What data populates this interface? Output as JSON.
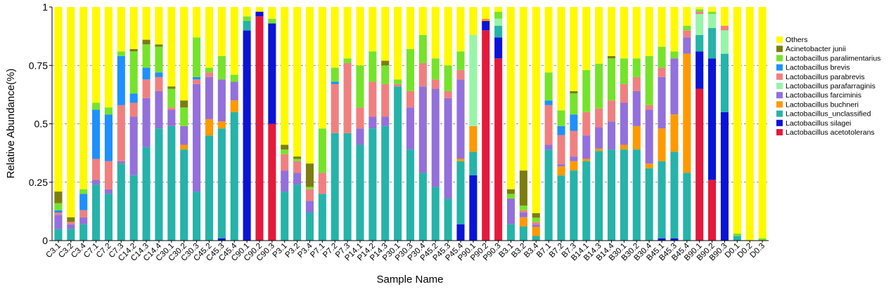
{
  "chart_data": {
    "type": "bar",
    "stacked": true,
    "xlabel": "Sample Name",
    "ylabel": "Relative Abundance(%)",
    "ylim": [
      0,
      1
    ],
    "yticks": [
      "0",
      "0.25",
      "0.5",
      "0.75",
      "1"
    ],
    "grid": "horizontal dashed",
    "legend_position": "right",
    "categories": [
      "C3.1",
      "C3.2",
      "C3.4",
      "C7.1",
      "C7.2",
      "C7.3",
      "C14.2",
      "C14.3",
      "C14.4",
      "C30.1",
      "C30.2",
      "C30.3",
      "C45.2",
      "C45.3",
      "C45.4",
      "C90.1",
      "C90.2",
      "C90.3",
      "P3.1",
      "P3.2",
      "P3.4",
      "P7.1",
      "P7.2",
      "P7.3",
      "P14.1",
      "P14.2",
      "P14.3",
      "P30.1",
      "P30.3",
      "P30.4",
      "P45.2",
      "P45.3",
      "P45.4",
      "P90.1",
      "P90.2",
      "P90.3",
      "B3.1",
      "B3.2",
      "B3.4",
      "B7.1",
      "B7.2",
      "B7.3",
      "B14.1",
      "B14.3",
      "B14.4",
      "B30.1",
      "B30.2",
      "B30.4",
      "B45.1",
      "B45.3",
      "B45.4",
      "B90.1",
      "B90.2",
      "B90.3",
      "D0.1",
      "D0.2",
      "D0.3"
    ],
    "series": [
      {
        "name": "Lactobacillus acetotolerans",
        "color": "#e31a3c",
        "values": [
          0,
          0,
          0,
          0,
          0,
          0,
          0,
          0,
          0,
          0,
          0,
          0,
          0,
          0,
          0,
          0,
          0.96,
          0.5,
          0,
          0,
          0,
          0,
          0,
          0,
          0,
          0,
          0,
          0,
          0,
          0,
          0,
          0,
          0,
          0,
          0.9,
          0.78,
          0,
          0,
          0,
          0,
          0,
          0,
          0,
          0,
          0,
          0,
          0,
          0,
          0,
          0,
          0,
          0.65,
          0.26,
          0,
          0,
          0,
          0
        ]
      },
      {
        "name": "Lactobacillus silagei",
        "color": "#0a14d6",
        "values": [
          0,
          0,
          0,
          0,
          0,
          0,
          0,
          0,
          0,
          0,
          0,
          0,
          0,
          0.01,
          0,
          0.9,
          0.02,
          0.43,
          0,
          0,
          0,
          0,
          0,
          0,
          0,
          0,
          0,
          0,
          0,
          0,
          0,
          0,
          0.07,
          0.28,
          0.04,
          0.09,
          0,
          0,
          0,
          0,
          0,
          0,
          0,
          0,
          0,
          0,
          0,
          0,
          0.01,
          0.01,
          0,
          0.16,
          0.52,
          0.55,
          0,
          0,
          0
        ]
      },
      {
        "name": "Lactobacillus_unclassified",
        "color": "#26b3a9",
        "values": [
          0.05,
          0.05,
          0.07,
          0.24,
          0.2,
          0.33,
          0.28,
          0.4,
          0.48,
          0.49,
          0.39,
          0.21,
          0.45,
          0.47,
          0.55,
          0.04,
          0,
          0,
          0.21,
          0.24,
          0.12,
          0.2,
          0.46,
          0.46,
          0.41,
          0.48,
          0.49,
          0.66,
          0.39,
          0.29,
          0.23,
          0.18,
          0.27,
          0.1,
          0,
          0.05,
          0.07,
          0.06,
          0.02,
          0.39,
          0.29,
          0.3,
          0.34,
          0.38,
          0.39,
          0.39,
          0.39,
          0.31,
          0.33,
          0.37,
          0.29,
          0.07,
          0.13,
          0.25,
          0.02,
          0,
          0
        ]
      },
      {
        "name": "Lactobacillus buchneri",
        "color": "#ff9900",
        "values": [
          0,
          0,
          0,
          0,
          0,
          0,
          0,
          0,
          0,
          0,
          0.02,
          0,
          0.07,
          0.03,
          0.05,
          0,
          0,
          0,
          0,
          0,
          0,
          0,
          0,
          0,
          0,
          0,
          0,
          0,
          0,
          0,
          0,
          0,
          0.01,
          0.11,
          0.01,
          0,
          0,
          0.04,
          0.04,
          0,
          0.04,
          0.04,
          0.01,
          0.01,
          0,
          0.02,
          0.1,
          0.02,
          0.14,
          0.16,
          0.51,
          0,
          0,
          0,
          0,
          0,
          0
        ]
      },
      {
        "name": "Lactobacillus farciminis",
        "color": "#9370db",
        "values": [
          0.06,
          0.02,
          0.03,
          0.02,
          0.02,
          0.01,
          0.25,
          0.21,
          0.16,
          0.07,
          0.08,
          0.46,
          0.18,
          0.18,
          0.08,
          0,
          0,
          0,
          0.09,
          0.05,
          0.05,
          0,
          0,
          0,
          0.07,
          0.05,
          0.04,
          0,
          0.18,
          0.37,
          0.42,
          0.43,
          0.34,
          0,
          0,
          0,
          0.11,
          0.02,
          0.01,
          0.02,
          0.01,
          0.02,
          0.1,
          0.09,
          0.12,
          0.18,
          0.15,
          0.23,
          0.22,
          0.24,
          0.07,
          0,
          0,
          0,
          0,
          0,
          0
        ]
      },
      {
        "name": "Lactobacillus parafarraginis",
        "color": "#98f5a8",
        "values": [
          0,
          0,
          0,
          0,
          0,
          0,
          0,
          0,
          0,
          0,
          0,
          0,
          0,
          0,
          0,
          0,
          0,
          0,
          0,
          0,
          0,
          0,
          0,
          0,
          0,
          0,
          0,
          0,
          0,
          0,
          0,
          0,
          0,
          0.39,
          0,
          0.03,
          0,
          0,
          0,
          0,
          0,
          0,
          0,
          0,
          0,
          0,
          0,
          0,
          0,
          0,
          0,
          0.09,
          0.06,
          0.1,
          0,
          0,
          0
        ]
      },
      {
        "name": "Lactobacillus parabrevis",
        "color": "#f08080",
        "values": [
          0.01,
          0.01,
          0.03,
          0.09,
          0.12,
          0.24,
          0.06,
          0.08,
          0.06,
          0.01,
          0,
          0.02,
          0.02,
          0,
          0,
          0,
          0,
          0,
          0.07,
          0.05,
          0.05,
          0.09,
          0.21,
          0.3,
          0.09,
          0.15,
          0.14,
          0.01,
          0.07,
          0.1,
          0.04,
          0.03,
          0.04,
          0,
          0,
          0,
          0,
          0.01,
          0.01,
          0.17,
          0.13,
          0.11,
          0.1,
          0.08,
          0.09,
          0.08,
          0.06,
          0.02,
          0.04,
          0,
          0.03,
          0.01,
          0,
          0.02,
          0,
          0,
          0
        ]
      },
      {
        "name": "Lactobacillus brevis",
        "color": "#1e90ff",
        "values": [
          0.01,
          0,
          0.07,
          0.21,
          0.2,
          0.21,
          0.04,
          0.05,
          0.02,
          0,
          0,
          0.01,
          0,
          0,
          0,
          0,
          0,
          0,
          0,
          0,
          0,
          0,
          0.01,
          0,
          0,
          0,
          0,
          0,
          0,
          0,
          0,
          0,
          0,
          0,
          0,
          0,
          0,
          0,
          0,
          0.02,
          0.04,
          0.07,
          0,
          0,
          0,
          0,
          0,
          0,
          0,
          0,
          0,
          0,
          0,
          0,
          0,
          0,
          0
        ]
      },
      {
        "name": "Lactobacillus paralimentarius",
        "color": "#76e32b",
        "values": [
          0.03,
          0,
          0.02,
          0.03,
          0.03,
          0.02,
          0.18,
          0.1,
          0.11,
          0.08,
          0.08,
          0.17,
          0.02,
          0.1,
          0.03,
          0.02,
          0,
          0.02,
          0.02,
          0.01,
          0.01,
          0.19,
          0.06,
          0.02,
          0.18,
          0.13,
          0.08,
          0.02,
          0.18,
          0.12,
          0.09,
          0.11,
          0.08,
          0,
          0,
          0.03,
          0.02,
          0.02,
          0.02,
          0.12,
          0.07,
          0.09,
          0.18,
          0.19,
          0.18,
          0.11,
          0.08,
          0.21,
          0.09,
          0.03,
          0.02,
          0.01,
          0.01,
          0,
          0.01,
          0,
          0.01
        ]
      },
      {
        "name": "Acinetobacter junii",
        "color": "#7d7d0f",
        "values": [
          0.05,
          0.02,
          0,
          0,
          0,
          0,
          0.01,
          0.02,
          0.01,
          0.01,
          0.03,
          0,
          0,
          0,
          0,
          0,
          0,
          0,
          0.02,
          0.01,
          0.1,
          0,
          0,
          0,
          0,
          0,
          0.02,
          0,
          0,
          0,
          0,
          0,
          0,
          0,
          0,
          0,
          0.02,
          0.15,
          0.02,
          0,
          0,
          0.01,
          0,
          0,
          0.01,
          0,
          0,
          0,
          0,
          0,
          0,
          0,
          0,
          0,
          0,
          0,
          0
        ]
      },
      {
        "name": "Others",
        "color": "#fffa00",
        "values": [
          0.79,
          0.9,
          0.78,
          0.41,
          0.43,
          0.19,
          0.18,
          0.14,
          0.16,
          0.34,
          0.4,
          0.13,
          0.26,
          0.21,
          0.29,
          0.04,
          0.02,
          0.05,
          0.59,
          0.64,
          0.67,
          0.52,
          0.26,
          0.22,
          0.25,
          0.19,
          0.23,
          0.31,
          0.18,
          0.12,
          0.22,
          0.25,
          0.19,
          0.12,
          0.05,
          0.02,
          0.78,
          0.7,
          0.9,
          0.28,
          0.46,
          0.36,
          0.27,
          0.24,
          0.21,
          0.22,
          0.22,
          0.21,
          0.17,
          0.19,
          0.08,
          0.01,
          0.02,
          0.08,
          0.97,
          0.99,
          0.99
        ]
      }
    ]
  }
}
